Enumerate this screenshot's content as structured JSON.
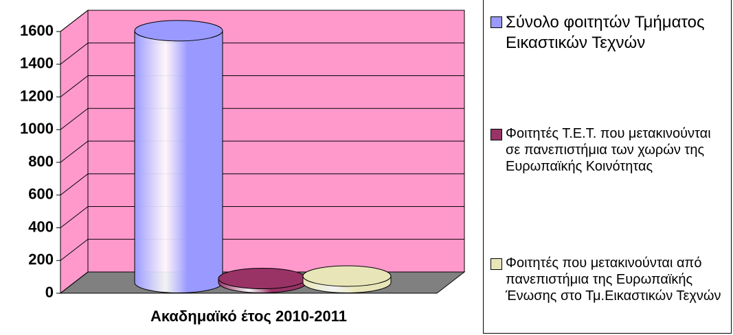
{
  "chart_data": {
    "type": "bar3d-cylinder",
    "categories": [
      "Ακαδημαϊκό έτος 2010-2011"
    ],
    "series": [
      {
        "name": "Σύνολο φοιτητών Τμήματος Εικαστικών Τεχνών",
        "color": "#9999ff",
        "values": [
          1540
        ]
      },
      {
        "name": "Φοιτητές Τ.Ε.Τ. που μετακινούνται σε πανεπιστήμια των χωρών της Ευρωπαϊκής Κοινότητας",
        "color": "#993366",
        "values": [
          25
        ]
      },
      {
        "name": "Φοιτητές που μετακινούνται από πανεπιστήμια της Ευρωπαϊκής Ένωσης στο Τμ.Εικαστικών Τεχνών",
        "color": "#e8e6b8",
        "values": [
          40
        ]
      }
    ],
    "ylim": [
      0,
      1600
    ],
    "yticks": [
      0,
      200,
      400,
      600,
      800,
      1000,
      1200,
      1400,
      1600
    ],
    "grid": true,
    "legend": "right",
    "background": "#ff99cc",
    "floor": "#808080"
  }
}
